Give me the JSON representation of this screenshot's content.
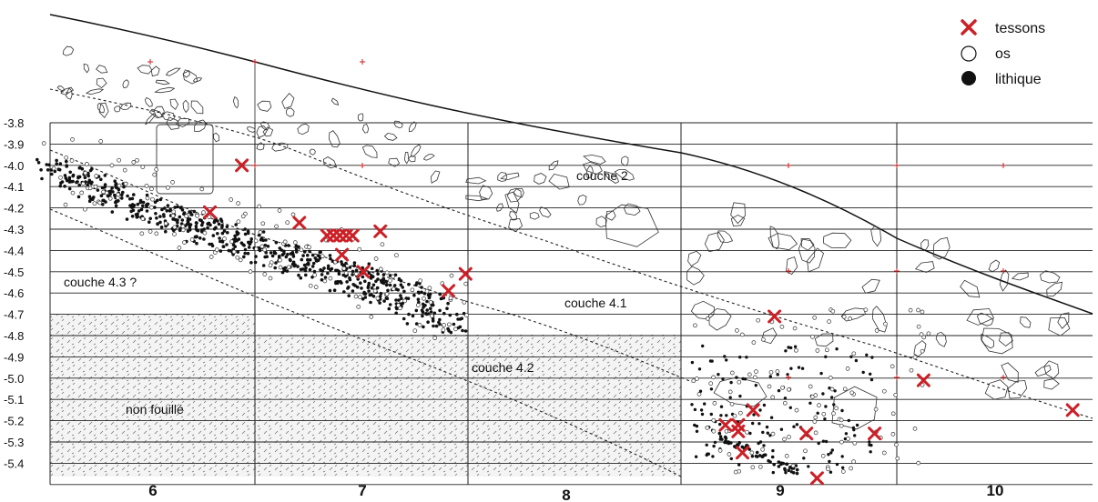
{
  "legend": [
    {
      "label": "tessons",
      "symbol": "red-x",
      "color": "#cc2027"
    },
    {
      "label": "os",
      "symbol": "open-circle",
      "color": "#111111"
    },
    {
      "label": "lithique",
      "symbol": "filled-circle",
      "color": "#111111"
    }
  ],
  "y_ticks": [
    "-3.8",
    "-3.9",
    "-4.0",
    "-4.1",
    "-4.2",
    "-4.3",
    "-4.4",
    "-4.5",
    "-4.6",
    "-4.7",
    "-4.8",
    "-4.9",
    "-5.0",
    "-5.1",
    "-5.2",
    "-5.3",
    "-5.4"
  ],
  "columns": [
    "6",
    "7",
    "8",
    "9",
    "10"
  ],
  "labels": {
    "couche2": "couche 2",
    "couche41": "couche 4.1",
    "couche42": "couche 4.2",
    "couche43": "couche 4.3 ?",
    "nonfouille": "non fouillé"
  },
  "colors": {
    "tessons": "#cc2027",
    "grid": "#222222",
    "hatch": "#666666",
    "shade": "#f2f2f2"
  },
  "tessons_points": [
    {
      "col": 6.45,
      "z": -4.0
    },
    {
      "col": 6.3,
      "z": -4.22
    },
    {
      "col": 6.72,
      "z": -4.27
    },
    {
      "col": 6.85,
      "z": -4.33
    },
    {
      "col": 6.88,
      "z": -4.33
    },
    {
      "col": 6.91,
      "z": -4.33
    },
    {
      "col": 6.94,
      "z": -4.33
    },
    {
      "col": 6.97,
      "z": -4.33
    },
    {
      "col": 6.92,
      "z": -4.42
    },
    {
      "col": 7.1,
      "z": -4.31
    },
    {
      "col": 7.02,
      "z": -4.5
    },
    {
      "col": 7.42,
      "z": -4.59
    },
    {
      "col": 7.5,
      "z": -4.51
    },
    {
      "col": 8.95,
      "z": -4.71
    },
    {
      "col": 9.65,
      "z": -5.01
    },
    {
      "col": 10.35,
      "z": -5.15
    },
    {
      "col": 8.85,
      "z": -5.15
    },
    {
      "col": 8.78,
      "z": -5.22
    },
    {
      "col": 8.72,
      "z": -5.22
    },
    {
      "col": 8.78,
      "z": -5.25
    },
    {
      "col": 8.8,
      "z": -5.35
    },
    {
      "col": 9.1,
      "z": -5.26
    },
    {
      "col": 9.42,
      "z": -5.26
    },
    {
      "col": 9.15,
      "z": -5.47
    }
  ]
}
